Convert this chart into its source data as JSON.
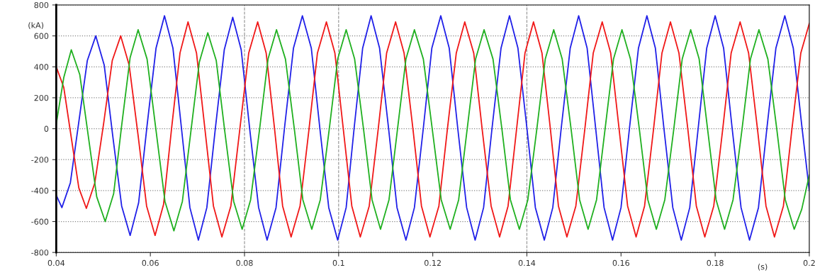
{
  "chart_data": {
    "type": "line",
    "xlabel": "(s)",
    "ylabel": "(kA)",
    "xlim": [
      0.04,
      0.2
    ],
    "xticks": [
      0.04,
      0.06,
      0.08,
      0.1,
      0.12,
      0.14,
      0.16,
      0.18,
      0.2
    ],
    "ylim": [
      -800,
      800
    ],
    "yticks": [
      -800,
      -600,
      -400,
      -200,
      0,
      200,
      400,
      600,
      800
    ],
    "grid": "y",
    "line_style": "solid",
    "ref_lines": [
      {
        "axis": "x",
        "value": 0.08,
        "line_style": "dashed",
        "color": "#909090"
      },
      {
        "axis": "x",
        "value": 0.1,
        "line_style": "dashed",
        "color": "#909090"
      },
      {
        "axis": "x",
        "value": 0.14,
        "line_style": "dashed",
        "color": "#909090"
      }
    ],
    "series": [
      {
        "color": "#2020e8",
        "x": [
          0.04,
          0.0412,
          0.043,
          0.0448,
          0.0466,
          0.0484,
          0.0502,
          0.052,
          0.0539,
          0.0557,
          0.0575,
          0.0593,
          0.0612,
          0.063,
          0.0648,
          0.0666,
          0.0684,
          0.0702,
          0.072,
          0.0738,
          0.0757,
          0.0775,
          0.0793,
          0.0811,
          0.083,
          0.0848,
          0.0867,
          0.0885,
          0.0904,
          0.0923,
          0.0942,
          0.096,
          0.0979,
          0.0998,
          0.1016,
          0.1033,
          0.1051,
          0.1069,
          0.1087,
          0.1106,
          0.1124,
          0.1143,
          0.1161,
          0.118,
          0.1198,
          0.1217,
          0.1235,
          0.1253,
          0.1272,
          0.129,
          0.1308,
          0.1326,
          0.1345,
          0.1363,
          0.1381,
          0.14,
          0.1418,
          0.1437,
          0.1455,
          0.1473,
          0.1492,
          0.151,
          0.1528,
          0.1546,
          0.1564,
          0.1582,
          0.16,
          0.1618,
          0.1637,
          0.1655,
          0.1673,
          0.1691,
          0.171,
          0.1728,
          0.1746,
          0.1764,
          0.1782,
          0.18,
          0.1818,
          0.1836,
          0.1855,
          0.1873,
          0.1892,
          0.191,
          0.1929,
          0.1948,
          0.1966,
          0.1984,
          0.2
        ],
        "values": [
          -430,
          -510,
          -350,
          45,
          440,
          600,
          410,
          -45,
          -500,
          -690,
          -480,
          20,
          520,
          730,
          520,
          5,
          -510,
          -720,
          -510,
          0,
          510,
          720,
          510,
          0,
          -510,
          -720,
          -510,
          5,
          520,
          730,
          520,
          5,
          -510,
          -720,
          -510,
          5,
          520,
          730,
          520,
          5,
          -510,
          -720,
          -510,
          5,
          520,
          730,
          520,
          5,
          -510,
          -720,
          -510,
          5,
          520,
          730,
          520,
          5,
          -510,
          -720,
          -510,
          5,
          520,
          730,
          520,
          5,
          -510,
          -720,
          -510,
          5,
          520,
          730,
          520,
          5,
          -510,
          -720,
          -510,
          5,
          520,
          730,
          520,
          5,
          -510,
          -720,
          -510,
          5,
          520,
          730,
          520,
          20,
          -400
        ]
      },
      {
        "color": "#f01818",
        "x": [
          0.04,
          0.0416,
          0.0432,
          0.0448,
          0.0464,
          0.0482,
          0.0501,
          0.0519,
          0.0537,
          0.0555,
          0.0574,
          0.0592,
          0.061,
          0.0628,
          0.0645,
          0.0663,
          0.068,
          0.0698,
          0.0716,
          0.0734,
          0.0752,
          0.0771,
          0.079,
          0.0809,
          0.0828,
          0.0846,
          0.0864,
          0.0881,
          0.0899,
          0.0918,
          0.0937,
          0.0955,
          0.0974,
          0.0992,
          0.101,
          0.1028,
          0.1046,
          0.1065,
          0.1084,
          0.1102,
          0.1121,
          0.1139,
          0.1158,
          0.1176,
          0.1194,
          0.1213,
          0.1231,
          0.125,
          0.1268,
          0.1287,
          0.1305,
          0.1324,
          0.1342,
          0.136,
          0.1378,
          0.1396,
          0.1414,
          0.1432,
          0.145,
          0.1467,
          0.1485,
          0.1504,
          0.1523,
          0.1541,
          0.156,
          0.1578,
          0.1596,
          0.1614,
          0.1632,
          0.165,
          0.1669,
          0.1687,
          0.1705,
          0.1723,
          0.1742,
          0.176,
          0.1778,
          0.1797,
          0.1816,
          0.1834,
          0.1853,
          0.1871,
          0.189,
          0.1908,
          0.1926,
          0.1945,
          0.1963,
          0.1982,
          0.2
        ],
        "values": [
          400,
          267,
          -58,
          -383,
          -515,
          -350,
          40,
          440,
          600,
          410,
          -45,
          -500,
          -690,
          -490,
          0,
          490,
          690,
          490,
          -5,
          -500,
          -700,
          -500,
          -5,
          490,
          690,
          490,
          -5,
          -500,
          -700,
          -500,
          -5,
          490,
          690,
          490,
          -5,
          -500,
          -700,
          -500,
          -5,
          490,
          690,
          490,
          -5,
          -500,
          -700,
          -500,
          -5,
          490,
          690,
          490,
          -5,
          -500,
          -700,
          -500,
          -5,
          490,
          690,
          490,
          -5,
          -500,
          -700,
          -500,
          -5,
          490,
          690,
          490,
          -5,
          -500,
          -700,
          -500,
          -5,
          490,
          690,
          490,
          -5,
          -500,
          -700,
          -500,
          -5,
          490,
          690,
          490,
          -5,
          -500,
          -700,
          -500,
          -5,
          490,
          680
        ]
      },
      {
        "color": "#20b020",
        "x": [
          0.04,
          0.0416,
          0.0432,
          0.045,
          0.0468,
          0.0486,
          0.0504,
          0.0522,
          0.0539,
          0.0557,
          0.0574,
          0.0593,
          0.0612,
          0.0631,
          0.065,
          0.0668,
          0.0686,
          0.0704,
          0.0722,
          0.074,
          0.0758,
          0.0777,
          0.0795,
          0.0813,
          0.0832,
          0.085,
          0.0868,
          0.0887,
          0.0906,
          0.0924,
          0.0943,
          0.0961,
          0.098,
          0.0998,
          0.1016,
          0.1034,
          0.1053,
          0.1071,
          0.1089,
          0.1107,
          0.1125,
          0.1143,
          0.1161,
          0.118,
          0.1199,
          0.1218,
          0.1237,
          0.1255,
          0.1273,
          0.1291,
          0.1309,
          0.1328,
          0.1347,
          0.1365,
          0.1384,
          0.1402,
          0.1421,
          0.1439,
          0.1457,
          0.1475,
          0.1494,
          0.1512,
          0.153,
          0.1548,
          0.1566,
          0.1584,
          0.1602,
          0.162,
          0.1639,
          0.1657,
          0.1675,
          0.1693,
          0.1712,
          0.173,
          0.1748,
          0.1766,
          0.1784,
          0.1802,
          0.182,
          0.1838,
          0.1857,
          0.1875,
          0.1893,
          0.1912,
          0.1931,
          0.1949,
          0.1968,
          0.1984,
          0.2
        ],
        "values": [
          30,
          330,
          510,
          350,
          -45,
          -440,
          -600,
          -420,
          20,
          460,
          640,
          450,
          -10,
          -470,
          -660,
          -470,
          -20,
          430,
          620,
          440,
          -15,
          -470,
          -650,
          -460,
          -5,
          450,
          640,
          450,
          -5,
          -460,
          -650,
          -460,
          -5,
          450,
          640,
          450,
          -5,
          -460,
          -650,
          -460,
          -5,
          450,
          640,
          450,
          -5,
          -460,
          -650,
          -460,
          -5,
          450,
          640,
          450,
          -5,
          -460,
          -650,
          -460,
          -5,
          450,
          640,
          450,
          -5,
          -460,
          -650,
          -460,
          -5,
          450,
          640,
          450,
          -5,
          -460,
          -650,
          -460,
          -5,
          450,
          640,
          450,
          -5,
          -460,
          -650,
          -460,
          -5,
          450,
          640,
          450,
          -5,
          -460,
          -650,
          -520,
          -300
        ]
      }
    ]
  }
}
